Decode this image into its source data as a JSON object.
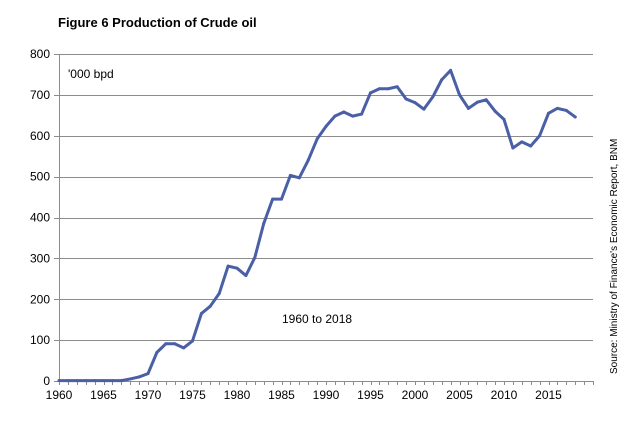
{
  "title": "Figure 6 Production of Crude oil",
  "unit_label": "'000 bpd",
  "period_label": "1960 to 2018",
  "source": "Source: Ministry of Finance's Economic Report, BNM",
  "colors": {
    "line": "#4a5fa6",
    "grid": "#8c8c8c"
  },
  "chart_data": {
    "type": "line",
    "title": "Figure 6 Production of Crude oil",
    "xlabel": "",
    "ylabel": "'000 bpd",
    "xlim": [
      1960,
      2020
    ],
    "ylim": [
      0,
      800
    ],
    "grid": "horizontal",
    "x_ticks": [
      1960,
      1965,
      1970,
      1975,
      1980,
      1985,
      1990,
      1995,
      2000,
      2005,
      2010,
      2015
    ],
    "y_ticks": [
      0,
      100,
      200,
      300,
      400,
      500,
      600,
      700,
      800
    ],
    "series": [
      {
        "x": [
          1960,
          1961,
          1962,
          1963,
          1964,
          1965,
          1966,
          1967,
          1968,
          1969,
          1970,
          1971,
          1972,
          1973,
          1974,
          1975,
          1976,
          1977,
          1978,
          1979,
          1980,
          1981,
          1982,
          1983,
          1984,
          1985,
          1986,
          1987,
          1988,
          1989,
          1990,
          1991,
          1992,
          1993,
          1994,
          1995,
          1996,
          1997,
          1998,
          1999,
          2000,
          2001,
          2002,
          2003,
          2004,
          2005,
          2006,
          2007,
          2008,
          2009,
          2010,
          2011,
          2012,
          2013,
          2014,
          2015,
          2016,
          2017,
          2018
        ],
        "values": [
          1,
          1,
          1,
          1,
          1,
          1,
          1,
          1,
          5,
          10,
          18,
          70,
          91,
          91,
          81,
          98,
          165,
          183,
          214,
          281,
          276,
          258,
          302,
          385,
          445,
          445,
          503,
          497,
          540,
          592,
          623,
          648,
          658,
          648,
          653,
          705,
          715,
          715,
          720,
          690,
          681,
          665,
          695,
          737,
          760,
          700,
          667,
          682,
          688,
          660,
          640,
          570,
          585,
          575,
          600,
          655,
          667,
          662,
          646
        ]
      }
    ]
  }
}
